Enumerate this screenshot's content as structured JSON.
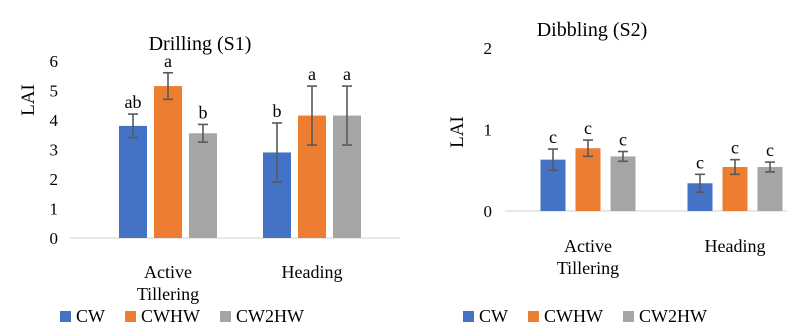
{
  "chart_data": [
    {
      "type": "bar",
      "title": "Drilling (S1)",
      "ylabel": "LAI",
      "xlabel": "",
      "ylim": [
        0,
        6
      ],
      "yticks": [
        0,
        1,
        2,
        3,
        4,
        5,
        6
      ],
      "grid": false,
      "legend_position": "bottom",
      "categories": [
        "Active Tillering",
        "Heading"
      ],
      "category_lines": [
        [
          "Active",
          "Tillering"
        ],
        [
          "Heading"
        ]
      ],
      "series": [
        {
          "name": "CW",
          "color": "#4472c4",
          "values": [
            3.8,
            2.9
          ],
          "errors": [
            0.4,
            1.0
          ],
          "labels": [
            "ab",
            "b"
          ]
        },
        {
          "name": "CWHW",
          "color": "#ed7d31",
          "values": [
            5.15,
            4.15
          ],
          "errors": [
            0.45,
            1.0
          ],
          "labels": [
            "a",
            "a"
          ]
        },
        {
          "name": "CW2HW",
          "color": "#a5a5a5",
          "values": [
            3.55,
            4.15
          ],
          "errors": [
            0.3,
            1.0
          ],
          "labels": [
            "b",
            "a"
          ]
        }
      ]
    },
    {
      "type": "bar",
      "title": "Dibbling (S2)",
      "ylabel": "LAI",
      "xlabel": "",
      "ylim": [
        0,
        2
      ],
      "yticks": [
        0,
        1,
        2
      ],
      "grid": false,
      "legend_position": "bottom",
      "categories": [
        "Active Tillering",
        "Heading"
      ],
      "category_lines": [
        [
          "Active",
          "Tillering"
        ],
        [
          "Heading"
        ]
      ],
      "series": [
        {
          "name": "CW",
          "color": "#4472c4",
          "values": [
            0.63,
            0.34
          ],
          "errors": [
            0.13,
            0.11
          ],
          "labels": [
            "c",
            "c"
          ]
        },
        {
          "name": "CWHW",
          "color": "#ed7d31",
          "values": [
            0.77,
            0.54
          ],
          "errors": [
            0.1,
            0.09
          ],
          "labels": [
            "c",
            "c"
          ]
        },
        {
          "name": "CW2HW",
          "color": "#a5a5a5",
          "values": [
            0.67,
            0.54
          ],
          "errors": [
            0.06,
            0.06
          ],
          "labels": [
            "c",
            "c"
          ]
        }
      ]
    }
  ]
}
